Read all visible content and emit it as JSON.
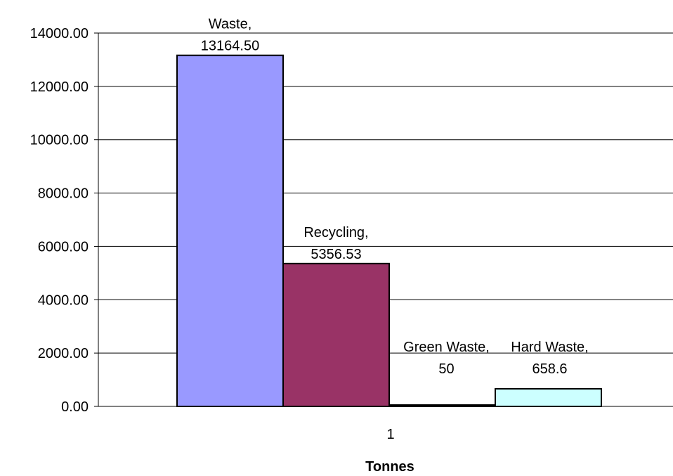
{
  "chart_data": {
    "type": "bar",
    "categories": [
      "1"
    ],
    "xlabel": "Tonnes",
    "ylabel": "",
    "title": "",
    "ylim": [
      0,
      14000
    ],
    "y_ticks": [
      0,
      2000,
      4000,
      6000,
      8000,
      10000,
      12000,
      14000
    ],
    "y_tick_labels": [
      "0.00",
      "2000.00",
      "4000.00",
      "6000.00",
      "8000.00",
      "10000.00",
      "12000.00",
      "14000.00"
    ],
    "grid": true,
    "legend": "none",
    "series": [
      {
        "name": "Waste",
        "values": [
          13164.5
        ],
        "color": "#9999ff",
        "label_lines": [
          "Waste,",
          "13164.50"
        ]
      },
      {
        "name": "Recycling",
        "values": [
          5356.53
        ],
        "color": "#993366",
        "label_lines": [
          "Recycling,",
          "5356.53"
        ]
      },
      {
        "name": "Green Waste",
        "values": [
          50
        ],
        "color": "#ffffcc",
        "label_lines": [
          "Green Waste,",
          "50"
        ]
      },
      {
        "name": "Hard Waste",
        "values": [
          658.6
        ],
        "color": "#ccffff",
        "label_lines": [
          "Hard Waste,",
          "658.6"
        ]
      }
    ]
  }
}
